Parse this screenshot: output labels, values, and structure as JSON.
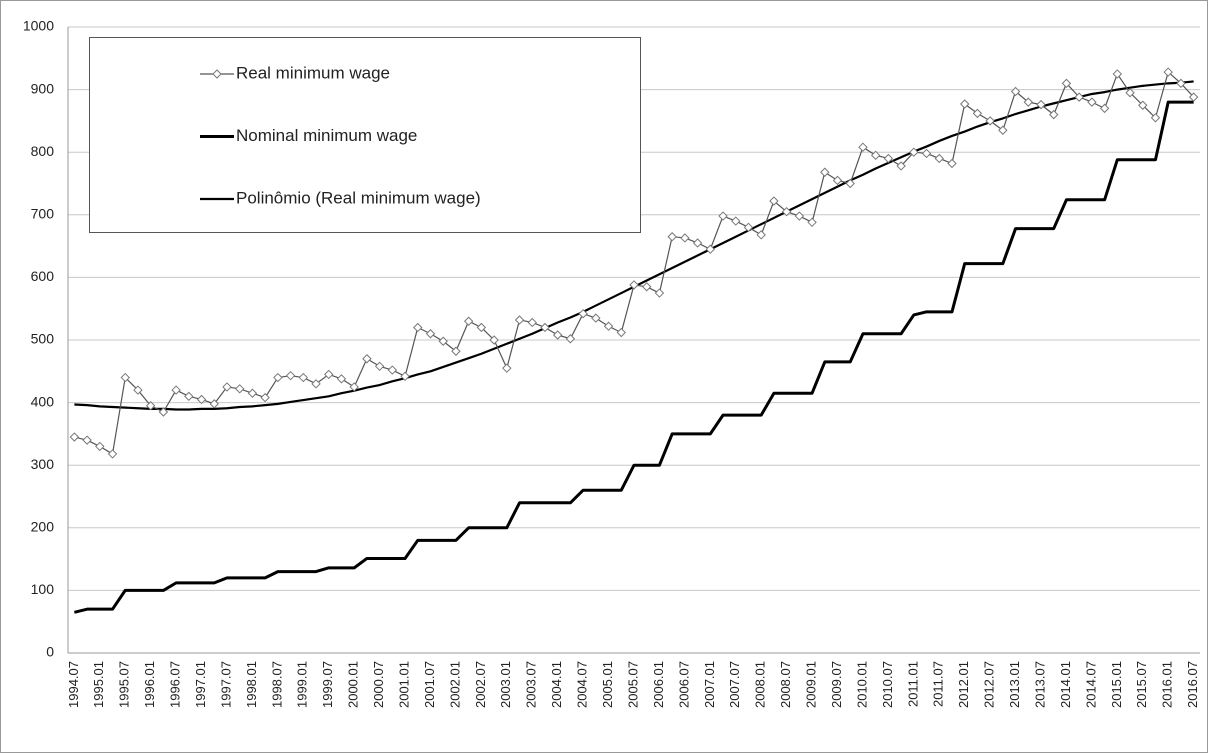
{
  "chart_data": {
    "type": "line",
    "categories": [
      "1994.07",
      null,
      "1995.01",
      null,
      "1995.07",
      null,
      "1996.01",
      null,
      "1996.07",
      null,
      "1997.01",
      null,
      "1997.07",
      null,
      "1998.01",
      null,
      "1998.07",
      null,
      "1999.01",
      null,
      "1999.07",
      null,
      "2000.01",
      null,
      "2000.07",
      null,
      "2001.01",
      null,
      "2001.07",
      null,
      "2002.01",
      null,
      "2002.07",
      null,
      "2003.01",
      null,
      "2003.07",
      null,
      "2004.01",
      null,
      "2004.07",
      null,
      "2005.01",
      null,
      "2005.07",
      null,
      "2006.01",
      null,
      "2006.07",
      null,
      "2007.01",
      null,
      "2007.07",
      null,
      "2008.01",
      null,
      "2008.07",
      null,
      "2009.01",
      null,
      "2009.07",
      null,
      "2010.01",
      null,
      "2010.07",
      null,
      "2011.01",
      null,
      "2011.07",
      null,
      "2012.01",
      null,
      "2012.07",
      null,
      "2013.01",
      null,
      "2013.07",
      null,
      "2014.01",
      null,
      "2014.07",
      null,
      "2015.01",
      null,
      "2015.07",
      null,
      "2016.01",
      null,
      "2016.07"
    ],
    "series": [
      {
        "name": "Real minimum wage",
        "color": "#555555",
        "marker": "diamond",
        "width": 1.2,
        "values": [
          345,
          340,
          330,
          318,
          440,
          420,
          395,
          385,
          420,
          410,
          405,
          398,
          425,
          422,
          415,
          408,
          440,
          443,
          440,
          430,
          445,
          438,
          425,
          470,
          458,
          452,
          442,
          520,
          510,
          498,
          482,
          530,
          520,
          500,
          455,
          532,
          528,
          520,
          508,
          502,
          542,
          535,
          522,
          512,
          588,
          585,
          575,
          665,
          663,
          655,
          645,
          698,
          690,
          680,
          668,
          722,
          705,
          698,
          688,
          768,
          755,
          750,
          808,
          795,
          790,
          778,
          800,
          798,
          790,
          782,
          877,
          862,
          850,
          835,
          897,
          880,
          876,
          860,
          910,
          888,
          880,
          870,
          925,
          895,
          875,
          855,
          928,
          910,
          888
        ]
      },
      {
        "name": "Nominal minimum wage",
        "color": "#000000",
        "width": 3,
        "values": [
          65,
          70,
          70,
          70,
          100,
          100,
          100,
          100,
          112,
          112,
          112,
          112,
          120,
          120,
          120,
          120,
          130,
          130,
          130,
          130,
          136,
          136,
          136,
          151,
          151,
          151,
          151,
          180,
          180,
          180,
          180,
          200,
          200,
          200,
          200,
          240,
          240,
          240,
          240,
          240,
          260,
          260,
          260,
          260,
          300,
          300,
          300,
          350,
          350,
          350,
          350,
          380,
          380,
          380,
          380,
          415,
          415,
          415,
          415,
          465,
          465,
          465,
          510,
          510,
          510,
          510,
          540,
          545,
          545,
          545,
          622,
          622,
          622,
          622,
          678,
          678,
          678,
          678,
          724,
          724,
          724,
          724,
          788,
          788,
          788,
          788,
          880,
          880,
          880
        ]
      },
      {
        "name": "Polinômio (Real minimum wage)",
        "color": "#000000",
        "width": 2.2,
        "values": [
          397,
          396,
          394,
          393,
          392,
          391,
          390,
          390,
          389,
          389,
          390,
          390,
          391,
          393,
          394,
          396,
          398,
          401,
          404,
          407,
          410,
          415,
          419,
          424,
          428,
          434,
          439,
          445,
          450,
          457,
          464,
          471,
          478,
          486,
          494,
          502,
          510,
          519,
          528,
          536,
          545,
          555,
          565,
          575,
          585,
          595,
          605,
          615,
          625,
          635,
          645,
          655,
          665,
          675,
          685,
          695,
          705,
          715,
          725,
          735,
          745,
          755,
          764,
          774,
          783,
          792,
          801,
          809,
          818,
          826,
          833,
          841,
          848,
          854,
          861,
          867,
          873,
          878,
          883,
          888,
          893,
          896,
          900,
          903,
          906,
          908,
          910,
          911,
          913
        ]
      }
    ],
    "ylim": [
      0,
      1000
    ],
    "yticks": [
      0,
      100,
      200,
      300,
      400,
      500,
      600,
      700,
      800,
      900,
      1000
    ],
    "grid": true,
    "legend": "upper left"
  }
}
